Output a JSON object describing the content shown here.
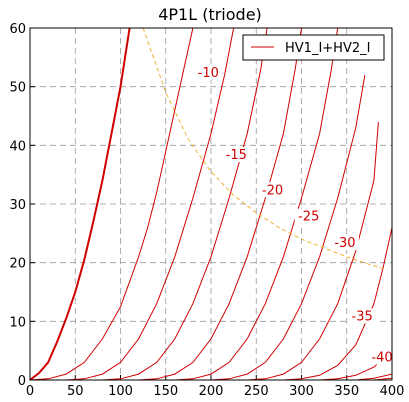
{
  "chart_data": {
    "type": "line",
    "title": "4P1L (triode)",
    "xlabel": "",
    "ylabel": "",
    "xlim": [
      0,
      400
    ],
    "ylim": [
      0,
      60
    ],
    "xticks": [
      0,
      50,
      100,
      150,
      200,
      250,
      300,
      350,
      400
    ],
    "yticks": [
      0,
      10,
      20,
      30,
      40,
      50,
      60
    ],
    "grid": true,
    "legend": {
      "placement": "top-right",
      "entries": [
        "HV1_I+HV2_I"
      ]
    },
    "colors": {
      "curves": "#d00000",
      "load_line": "#f0b030",
      "grid": "#999999"
    },
    "series": [
      {
        "label": "",
        "values": [
          [
            0,
            0
          ],
          [
            10,
            1.2
          ],
          [
            20,
            3
          ],
          [
            30,
            6.5
          ],
          [
            40,
            10.5
          ],
          [
            50,
            15
          ],
          [
            60,
            20.5
          ],
          [
            70,
            27
          ],
          [
            80,
            34
          ],
          [
            90,
            42
          ],
          [
            100,
            50
          ],
          [
            110,
            60
          ]
        ]
      },
      {
        "label": "",
        "values": [
          [
            0,
            0
          ],
          [
            20,
            0.2
          ],
          [
            40,
            1
          ],
          [
            60,
            3
          ],
          [
            80,
            7
          ],
          [
            100,
            12.5
          ],
          [
            120,
            21
          ],
          [
            130,
            26
          ],
          [
            140,
            32
          ],
          [
            150,
            39
          ],
          [
            160,
            46
          ],
          [
            170,
            53
          ],
          [
            180,
            60
          ]
        ]
      },
      {
        "label": "-10",
        "values": [
          [
            40,
            0
          ],
          [
            60,
            0.2
          ],
          [
            80,
            1
          ],
          [
            100,
            3
          ],
          [
            120,
            7
          ],
          [
            140,
            13
          ],
          [
            160,
            21
          ],
          [
            180,
            31
          ],
          [
            200,
            42
          ],
          [
            215,
            52
          ],
          [
            225,
            60
          ]
        ]
      },
      {
        "label": "",
        "values": [
          [
            80,
            0
          ],
          [
            100,
            0.2
          ],
          [
            120,
            1
          ],
          [
            140,
            3
          ],
          [
            160,
            7
          ],
          [
            180,
            13
          ],
          [
            200,
            21
          ],
          [
            220,
            31
          ],
          [
            240,
            42
          ],
          [
            255,
            53
          ],
          [
            262,
            60
          ]
        ]
      },
      {
        "label": "-15",
        "values": [
          [
            120,
            0
          ],
          [
            140,
            0.2
          ],
          [
            160,
            1
          ],
          [
            180,
            3
          ],
          [
            200,
            7
          ],
          [
            220,
            13
          ],
          [
            240,
            21
          ],
          [
            260,
            31
          ],
          [
            280,
            42
          ],
          [
            293,
            53
          ],
          [
            300,
            60
          ]
        ]
      },
      {
        "label": "-20",
        "values": [
          [
            160,
            0
          ],
          [
            180,
            0.2
          ],
          [
            200,
            1
          ],
          [
            220,
            3
          ],
          [
            240,
            7
          ],
          [
            260,
            13
          ],
          [
            280,
            21
          ],
          [
            300,
            31
          ],
          [
            320,
            42
          ],
          [
            333,
            53
          ],
          [
            340,
            60
          ]
        ]
      },
      {
        "label": "-25",
        "values": [
          [
            200,
            0
          ],
          [
            220,
            0.2
          ],
          [
            240,
            1
          ],
          [
            260,
            3
          ],
          [
            280,
            7
          ],
          [
            300,
            13
          ],
          [
            320,
            21
          ],
          [
            340,
            31
          ],
          [
            360,
            43
          ],
          [
            370,
            52
          ]
        ]
      },
      {
        "label": "-30",
        "values": [
          [
            240,
            0
          ],
          [
            260,
            0.2
          ],
          [
            280,
            1
          ],
          [
            300,
            3
          ],
          [
            320,
            7
          ],
          [
            340,
            13
          ],
          [
            360,
            22
          ],
          [
            380,
            34
          ],
          [
            385,
            44
          ]
        ]
      },
      {
        "label": "-35",
        "values": [
          [
            280,
            0
          ],
          [
            300,
            0.2
          ],
          [
            320,
            0.8
          ],
          [
            340,
            2.5
          ],
          [
            360,
            6
          ],
          [
            380,
            13
          ],
          [
            390,
            19
          ],
          [
            400,
            26
          ]
        ]
      },
      {
        "label": "-40",
        "values": [
          [
            320,
            0
          ],
          [
            340,
            0.2
          ],
          [
            360,
            0.8
          ],
          [
            380,
            2.2
          ],
          [
            400,
            5
          ]
        ]
      },
      {
        "label": "",
        "values": [
          [
            360,
            0
          ],
          [
            380,
            0.3
          ],
          [
            400,
            1
          ]
        ]
      },
      {
        "label": "",
        "values": [
          [
            380,
            0
          ],
          [
            400,
            0.3
          ]
        ]
      }
    ],
    "load_line": [
      [
        125,
        60
      ],
      [
        150,
        49
      ],
      [
        175,
        41
      ],
      [
        200,
        35.5
      ],
      [
        225,
        31.5
      ],
      [
        250,
        28.5
      ],
      [
        275,
        26
      ],
      [
        300,
        24
      ],
      [
        325,
        22.5
      ],
      [
        350,
        21
      ],
      [
        375,
        19.7
      ],
      [
        390,
        19
      ]
    ],
    "curve_labels": [
      {
        "text": "-10",
        "x": 197,
        "y": 52
      },
      {
        "text": "-15",
        "x": 228,
        "y": 38
      },
      {
        "text": "-20",
        "x": 268,
        "y": 32
      },
      {
        "text": "-25",
        "x": 308,
        "y": 27.5
      },
      {
        "text": "-30",
        "x": 348,
        "y": 23
      },
      {
        "text": "-35",
        "x": 367,
        "y": 10.5
      },
      {
        "text": "-40",
        "x": 389,
        "y": 3.5
      }
    ]
  }
}
